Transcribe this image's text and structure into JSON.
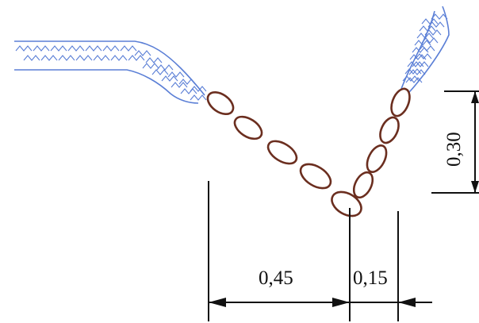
{
  "dimensions": {
    "width_left": "0,45",
    "width_right": "0,15",
    "depth": "0,30"
  },
  "colors": {
    "soil": "#5b7fd6",
    "stone": "#6b2e1f",
    "line": "#111111"
  },
  "elements": {
    "left_bank": "soil-hatched",
    "right_bank": "soil-hatched",
    "lining": "stone-masonry"
  }
}
